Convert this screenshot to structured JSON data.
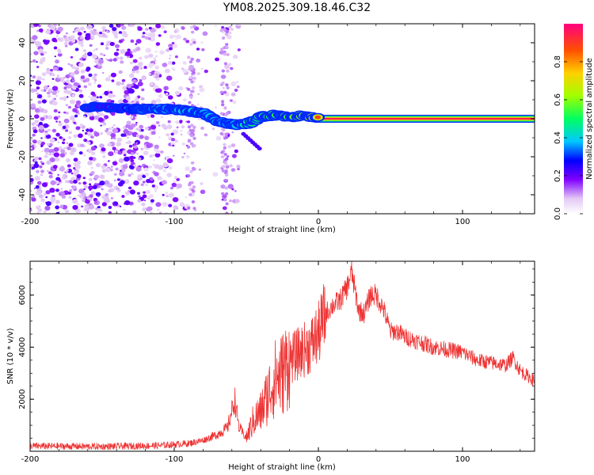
{
  "title": "YM08.2025.309.18.46.C32",
  "colors": {
    "snr_line": "#ee3333",
    "axis": "#000000",
    "grid_tick": "#000000"
  },
  "chart_data": [
    {
      "type": "heatmap",
      "name": "spectrogram",
      "xlabel": "Height of straight line (km)",
      "ylabel": "Frequency (Hz)",
      "xlim": [
        -200,
        150
      ],
      "ylim": [
        -50,
        50
      ],
      "xticks": [
        -200,
        -100,
        0,
        100
      ],
      "xtick_labels": [
        "-200",
        "-100",
        "0",
        "100"
      ],
      "yticks": [
        -40,
        -20,
        0,
        20,
        40
      ],
      "ytick_labels": [
        "-40",
        "-20",
        "0",
        "20",
        "40"
      ],
      "colorbar": {
        "label": "Normalized spectral amplitude",
        "range": [
          0,
          1
        ],
        "ticks": [
          0.0,
          0.2,
          0.4,
          0.6,
          0.8
        ],
        "tick_labels": [
          "0.0",
          "0.2",
          "0.4",
          "0.6",
          "0.8"
        ]
      },
      "ridge": [
        {
          "x": -160,
          "f": 6,
          "amp": 0.25
        },
        {
          "x": -150,
          "f": 6,
          "amp": 0.3
        },
        {
          "x": -130,
          "f": 5,
          "amp": 0.35
        },
        {
          "x": -120,
          "f": 5,
          "amp": 0.45
        },
        {
          "x": -110,
          "f": 5,
          "amp": 0.5
        },
        {
          "x": -100,
          "f": 5,
          "amp": 0.45
        },
        {
          "x": -90,
          "f": 4,
          "amp": 0.55
        },
        {
          "x": -80,
          "f": 3,
          "amp": 0.5
        },
        {
          "x": -70,
          "f": -1,
          "amp": 0.5
        },
        {
          "x": -60,
          "f": -3,
          "amp": 0.45
        },
        {
          "x": -50,
          "f": -3,
          "amp": 0.6
        },
        {
          "x": -40,
          "f": 1,
          "amp": 0.65
        },
        {
          "x": -30,
          "f": 2,
          "amp": 0.7
        },
        {
          "x": -20,
          "f": 1,
          "amp": 0.75
        },
        {
          "x": -10,
          "f": 2,
          "amp": 0.8
        },
        {
          "x": 0,
          "f": 0,
          "amp": 0.9
        },
        {
          "x": 50,
          "f": 0,
          "amp": 0.95
        },
        {
          "x": 100,
          "f": 0,
          "amp": 0.95
        },
        {
          "x": 150,
          "f": 0,
          "amp": 0.95
        }
      ]
    },
    {
      "type": "line",
      "name": "snr",
      "xlabel": "Height of straight line (km)",
      "ylabel": "SNR (10 * v/v)",
      "xlim": [
        -200,
        150
      ],
      "ylim": [
        0,
        7300
      ],
      "xticks": [
        -200,
        -100,
        0,
        100
      ],
      "xtick_labels": [
        "-200",
        "-100",
        "0",
        "100"
      ],
      "yticks": [
        2000,
        4000,
        6000
      ],
      "ytick_labels": [
        "2000",
        "4000",
        "6000"
      ],
      "envelope": [
        {
          "x": -200,
          "y": 200
        },
        {
          "x": -150,
          "y": 180
        },
        {
          "x": -110,
          "y": 220
        },
        {
          "x": -90,
          "y": 300
        },
        {
          "x": -80,
          "y": 420
        },
        {
          "x": -70,
          "y": 650
        },
        {
          "x": -63,
          "y": 900
        },
        {
          "x": -58,
          "y": 2000
        },
        {
          "x": -55,
          "y": 900
        },
        {
          "x": -50,
          "y": 500
        },
        {
          "x": -45,
          "y": 1200
        },
        {
          "x": -40,
          "y": 1500
        },
        {
          "x": -35,
          "y": 2200
        },
        {
          "x": -30,
          "y": 2800
        },
        {
          "x": -25,
          "y": 3000
        },
        {
          "x": -20,
          "y": 3500
        },
        {
          "x": -15,
          "y": 3700
        },
        {
          "x": -10,
          "y": 3900
        },
        {
          "x": -5,
          "y": 4100
        },
        {
          "x": 0,
          "y": 4500
        },
        {
          "x": 5,
          "y": 5300
        },
        {
          "x": 10,
          "y": 5600
        },
        {
          "x": 15,
          "y": 5800
        },
        {
          "x": 20,
          "y": 6300
        },
        {
          "x": 23,
          "y": 6900
        },
        {
          "x": 28,
          "y": 5400
        },
        {
          "x": 32,
          "y": 5300
        },
        {
          "x": 36,
          "y": 6000
        },
        {
          "x": 40,
          "y": 6000
        },
        {
          "x": 45,
          "y": 5500
        },
        {
          "x": 50,
          "y": 4600
        },
        {
          "x": 55,
          "y": 4600
        },
        {
          "x": 60,
          "y": 4400
        },
        {
          "x": 70,
          "y": 4200
        },
        {
          "x": 80,
          "y": 4000
        },
        {
          "x": 90,
          "y": 3900
        },
        {
          "x": 100,
          "y": 3800
        },
        {
          "x": 110,
          "y": 3500
        },
        {
          "x": 120,
          "y": 3400
        },
        {
          "x": 130,
          "y": 3300
        },
        {
          "x": 135,
          "y": 3600
        },
        {
          "x": 140,
          "y": 3100
        },
        {
          "x": 150,
          "y": 2700
        }
      ]
    }
  ]
}
